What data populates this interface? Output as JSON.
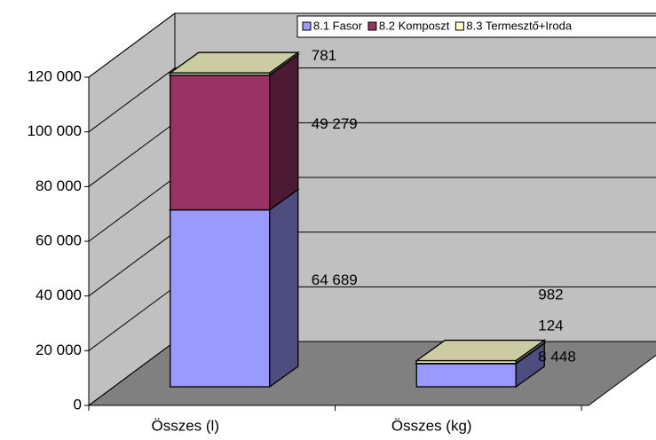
{
  "chart_data": {
    "type": "bar3d_stacked",
    "categories": [
      "Összes (l)",
      "Összes (kg)"
    ],
    "series": [
      {
        "name": "8.1 Fasor",
        "color": "#9999ff",
        "values": [
          64689,
          8448
        ],
        "value_labels": [
          "64 689",
          "8 448"
        ]
      },
      {
        "name": "8.2 Komposzt",
        "color": "#993366",
        "values": [
          49279,
          124
        ],
        "value_labels": [
          "49 279",
          "124"
        ]
      },
      {
        "name": "8.3 Termesztő+Iroda",
        "color": "#ffffcc",
        "values": [
          781,
          982
        ],
        "value_labels": [
          "781",
          "982"
        ]
      }
    ],
    "ylim": [
      0,
      120000
    ],
    "yticks": [
      0,
      {
        "value": 20000,
        "label": "20 000"
      },
      {
        "value": 40000,
        "label": "40 000"
      },
      {
        "value": 60000,
        "label": "60 000"
      },
      {
        "value": 80000,
        "label": "80 000"
      },
      {
        "value": 100000,
        "label": "100 000"
      },
      {
        "value": 120000,
        "label": "120 000"
      }
    ],
    "grid": true,
    "legend": "top-right"
  }
}
